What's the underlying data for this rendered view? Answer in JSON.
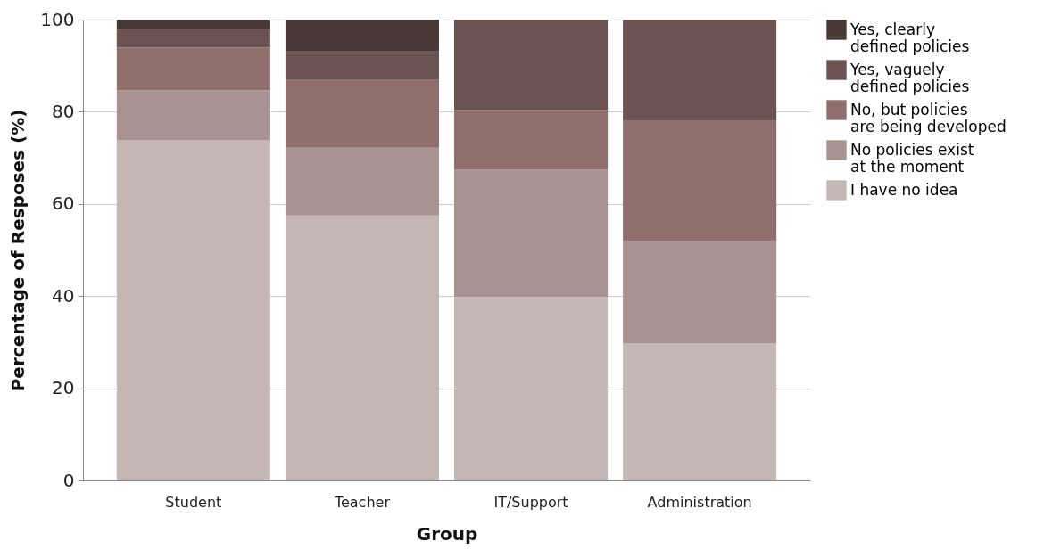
{
  "chart_data": {
    "type": "bar",
    "stacked": true,
    "xlabel": "Group",
    "ylabel": "Percentage of Resposes (%)",
    "categories": [
      "Student",
      "Teacher",
      "IT/Support",
      "Administration"
    ],
    "series": [
      {
        "name": "I have no idea",
        "color": "#c5b6b6",
        "values": [
          73.8,
          57.5,
          39.8,
          29.8
        ]
      },
      {
        "name": "No policies exist at the moment",
        "color": "#a99292",
        "values": [
          10.8,
          14.7,
          27.6,
          22.2
        ]
      },
      {
        "name": "No, but policies are being developed",
        "color": "#8f6e6c",
        "values": [
          9.3,
          14.7,
          13.0,
          26.0
        ]
      },
      {
        "name": "Yes, vaguely defined policies",
        "color": "#6b5352",
        "values": [
          4.1,
          6.2,
          19.6,
          22.0
        ]
      },
      {
        "name": "Yes, clearly defined policies",
        "color": "#493838",
        "values": [
          2.0,
          6.9,
          0,
          0
        ]
      }
    ],
    "ylim": [
      0,
      100
    ],
    "yticks": [
      0,
      20,
      40,
      60,
      80,
      100
    ],
    "grid": "y",
    "legend": "right"
  }
}
